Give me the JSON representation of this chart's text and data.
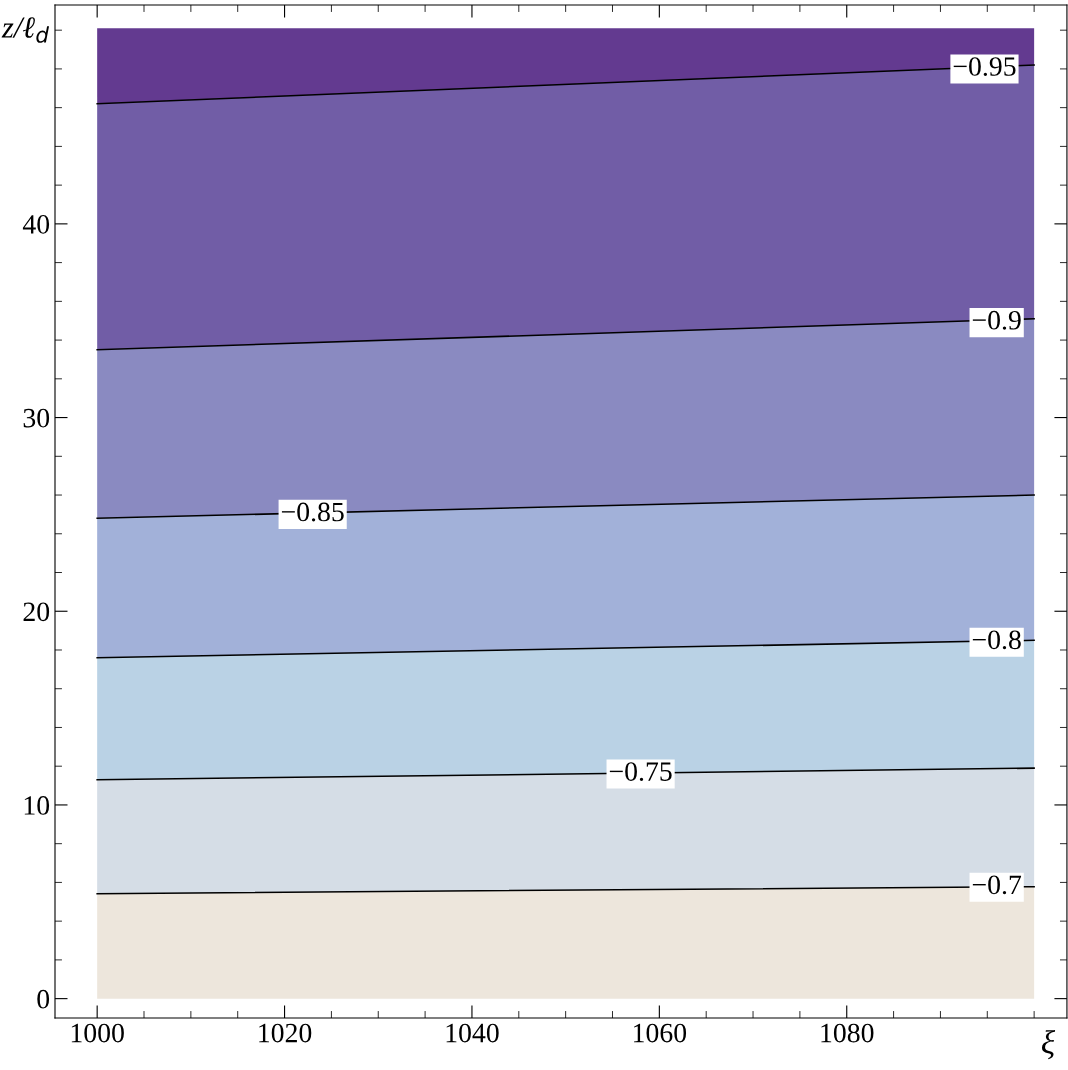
{
  "chart_data": {
    "type": "area",
    "stacked": true,
    "xlabel": "ξ",
    "ylabel": "z/ℓ$_{d}$",
    "xlim": [
      995.5,
      1103.5
    ],
    "ylim": [
      -1,
      51.3
    ],
    "xticks": [
      1000,
      1020,
      1040,
      1060,
      1080
    ],
    "yticks": [
      0,
      10,
      20,
      30,
      40
    ],
    "grid": false,
    "x": [
      1000,
      1100
    ],
    "series": [
      {
        "type": "area",
        "color": "#ede6dc",
        "line_style": "solid",
        "values": [
          5.42,
          5.78
        ]
      },
      {
        "type": "area",
        "color": "#d5dde6",
        "line_style": "solid",
        "values": [
          5.88,
          6.12
        ]
      },
      {
        "type": "area",
        "color": "#bad2e5",
        "line_style": "solid",
        "values": [
          6.3,
          6.6
        ]
      },
      {
        "type": "area",
        "color": "#a2b1d9",
        "line_style": "solid",
        "values": [
          7.2,
          7.5
        ]
      },
      {
        "type": "area",
        "color": "#8a8ac1",
        "line_style": "solid",
        "values": [
          8.7,
          9.1
        ]
      },
      {
        "type": "area",
        "color": "#715da6",
        "line_style": "solid",
        "values": [
          12.7,
          13.1
        ]
      },
      {
        "type": "area",
        "color": "#633a90",
        "line_style": "none",
        "values": [
          3.9,
          1.9
        ]
      }
    ],
    "annotations": [
      {
        "text": "−0.95",
        "x": 1094.7,
        "y": 48.0
      },
      {
        "text": "−0.9",
        "x": 1096,
        "y": 34.9
      },
      {
        "text": "−0.85",
        "x": 1023,
        "y": 25.0
      },
      {
        "text": "−0.8",
        "x": 1096,
        "y": 18.4
      },
      {
        "text": "−0.75",
        "x": 1058,
        "y": 11.6
      },
      {
        "text": "−0.7",
        "x": 1096,
        "y": 5.75
      }
    ]
  }
}
